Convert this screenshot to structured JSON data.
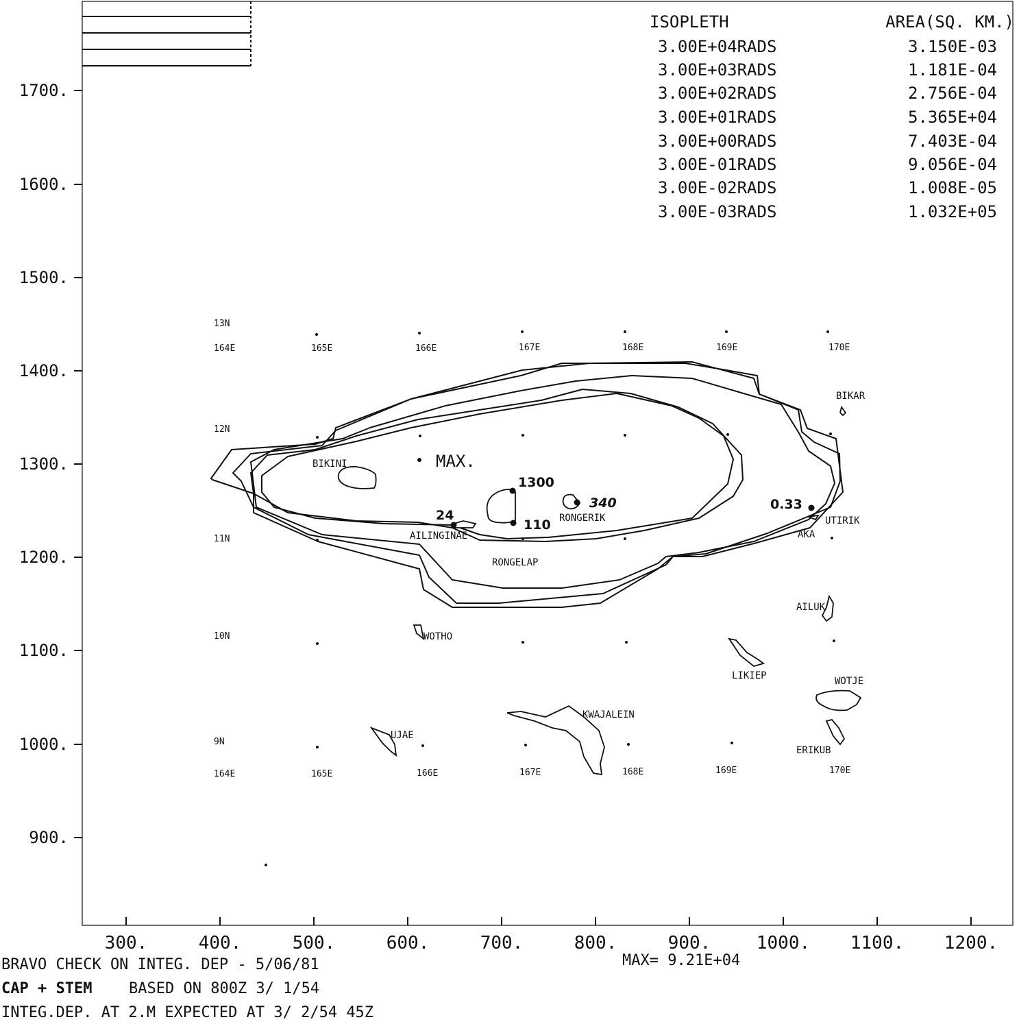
{
  "legend": {
    "header_isopleth": "ISOPLETH",
    "header_area": "AREA(SQ. KM.)",
    "rows": [
      {
        "isopleth": "3.00E+04RADS",
        "area": "3.150E-03"
      },
      {
        "isopleth": "3.00E+03RADS",
        "area": "1.181E-04"
      },
      {
        "isopleth": "3.00E+02RADS",
        "area": "2.756E-04"
      },
      {
        "isopleth": "3.00E+01RADS",
        "area": "5.365E+04"
      },
      {
        "isopleth": "3.00E+00RADS",
        "area": "7.403E-04"
      },
      {
        "isopleth": "3.00E-01RADS",
        "area": "9.056E-04"
      },
      {
        "isopleth": "3.00E-02RADS",
        "area": "1.008E-05"
      },
      {
        "isopleth": "3.00E-03RADS",
        "area": "1.032E+05"
      }
    ]
  },
  "axes": {
    "y_ticks": [
      "1700.",
      "1600.",
      "1500.",
      "1400.",
      "1300.",
      "1200.",
      "1100.",
      "1000.",
      "900."
    ],
    "x_ticks": [
      "300.",
      "400.",
      "500.",
      "600.",
      "700.",
      "800.",
      "900.",
      "1000.",
      "1100.",
      "1200."
    ]
  },
  "grid": {
    "lat_labels": [
      "13N",
      "12N",
      "11N",
      "10N",
      "9N"
    ],
    "lon_labels": [
      "164E",
      "165E",
      "166E",
      "167E",
      "168E",
      "169E",
      "170E"
    ]
  },
  "islands": {
    "bikini": "BIKINI",
    "rongerik": "RONGERIK",
    "ailinginae": "AILINGINAE",
    "rongelap": "RONGELAP",
    "bikar": "BIKAR",
    "utirik": "UTIRIK",
    "aka": "AKA",
    "ailuk": "AILUK",
    "wotho": "WOTHO",
    "likiep": "LIKIEP",
    "wotje": "WOTJE",
    "kwajalein": "KWAJALEIN",
    "ujae": "UJAE",
    "erikub": "ERIKUB"
  },
  "annotations": {
    "max_label": "MAX.",
    "v1300": "1300",
    "v110": "110",
    "v24": "24",
    "v340": "340",
    "v033": "0.33"
  },
  "footer": {
    "max_value": "MAX= 9.21E+04",
    "line1": "BRAVO CHECK ON INTEG. DEP - 5/06/81",
    "line2_a": "CAP + STEM",
    "line2_b": "BASED ON  800Z  3/ 1/54",
    "line3": "INTEG.DEP. AT    2.M EXPECTED AT      3/ 2/54      45Z"
  }
}
